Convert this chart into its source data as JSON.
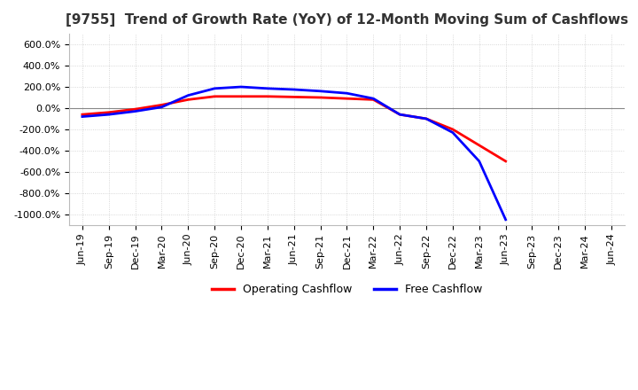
{
  "title": "[9755]  Trend of Growth Rate (YoY) of 12-Month Moving Sum of Cashflows",
  "title_fontsize": 11,
  "background_color": "#ffffff",
  "grid_color": "#cccccc",
  "ylim": [
    -1100,
    700
  ],
  "yticks": [
    600,
    400,
    200,
    0,
    -200,
    -400,
    -600,
    -800,
    -1000
  ],
  "tick_fontsize": 8,
  "x_labels": [
    "Jun-19",
    "Sep-19",
    "Dec-19",
    "Mar-20",
    "Jun-20",
    "Sep-20",
    "Dec-20",
    "Mar-21",
    "Jun-21",
    "Sep-21",
    "Dec-21",
    "Mar-22",
    "Jun-22",
    "Sep-22",
    "Dec-22",
    "Mar-23",
    "Jun-23",
    "Sep-23",
    "Dec-23",
    "Mar-24",
    "Jun-24"
  ],
  "operating_cashflow": [
    -60,
    -40,
    -10,
    30,
    80,
    110,
    110,
    110,
    105,
    100,
    90,
    80,
    -60,
    -100,
    -200,
    -350,
    -500,
    null,
    null,
    null,
    null
  ],
  "free_cashflow": [
    -80,
    -60,
    -30,
    10,
    120,
    185,
    200,
    185,
    175,
    160,
    140,
    90,
    -60,
    -100,
    -230,
    -500,
    -1050,
    null,
    null,
    null,
    null
  ],
  "operating_color": "#ff0000",
  "free_color": "#0000ff",
  "line_width": 2.0,
  "legend_labels": [
    "Operating Cashflow",
    "Free Cashflow"
  ]
}
